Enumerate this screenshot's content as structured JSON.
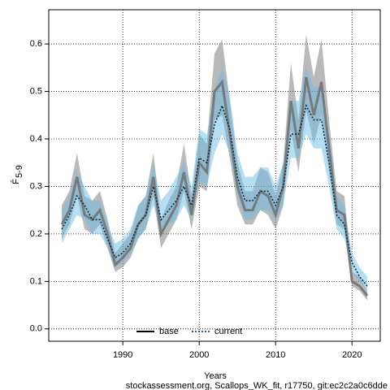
{
  "chart_data": {
    "type": "line",
    "x_label": "Years",
    "y_label": "F̄",
    "y_label_sub": "5-9",
    "footnote": "stockassessment.org, Scallops_WK_fit, r17750, git:ec2c2a0c6dde",
    "x": [
      1982,
      1983,
      1984,
      1985,
      1986,
      1987,
      1988,
      1989,
      1990,
      1991,
      1992,
      1993,
      1994,
      1995,
      1996,
      1997,
      1998,
      1999,
      2000,
      2001,
      2002,
      2003,
      2004,
      2005,
      2006,
      2007,
      2008,
      2009,
      2010,
      2011,
      2012,
      2013,
      2014,
      2015,
      2016,
      2017,
      2018,
      2019,
      2020,
      2021,
      2022
    ],
    "series": [
      {
        "name": "base",
        "color": "#000000",
        "line_color": "#6e6e6e",
        "band_color": "rgba(128,128,128,0.55)",
        "dash": false,
        "values": [
          0.22,
          0.25,
          0.32,
          0.24,
          0.23,
          0.25,
          0.2,
          0.135,
          0.15,
          0.17,
          0.22,
          0.24,
          0.32,
          0.2,
          0.23,
          0.26,
          0.33,
          0.24,
          0.35,
          0.33,
          0.5,
          0.52,
          0.41,
          0.3,
          0.25,
          0.25,
          0.29,
          0.28,
          0.24,
          0.3,
          0.48,
          0.38,
          0.53,
          0.45,
          0.52,
          0.38,
          0.25,
          0.24,
          0.1,
          0.09,
          0.07
        ],
        "lower": [
          0.19,
          0.22,
          0.28,
          0.21,
          0.2,
          0.22,
          0.17,
          0.12,
          0.13,
          0.15,
          0.19,
          0.21,
          0.28,
          0.17,
          0.2,
          0.23,
          0.29,
          0.21,
          0.3,
          0.29,
          0.44,
          0.45,
          0.36,
          0.26,
          0.22,
          0.22,
          0.25,
          0.24,
          0.21,
          0.26,
          0.42,
          0.33,
          0.46,
          0.39,
          0.45,
          0.33,
          0.22,
          0.21,
          0.09,
          0.08,
          0.06
        ],
        "upper": [
          0.26,
          0.29,
          0.37,
          0.28,
          0.27,
          0.29,
          0.23,
          0.16,
          0.18,
          0.2,
          0.26,
          0.28,
          0.37,
          0.23,
          0.27,
          0.3,
          0.39,
          0.28,
          0.41,
          0.39,
          0.58,
          0.61,
          0.48,
          0.35,
          0.29,
          0.29,
          0.34,
          0.33,
          0.28,
          0.35,
          0.56,
          0.44,
          0.62,
          0.53,
          0.61,
          0.44,
          0.29,
          0.28,
          0.12,
          0.11,
          0.08
        ]
      },
      {
        "name": "current",
        "color": "#1f5f8b",
        "line_color": "#0d2a40",
        "band_color": "rgba(110,190,230,0.5)",
        "dash": true,
        "values": [
          0.21,
          0.24,
          0.28,
          0.26,
          0.23,
          0.23,
          0.19,
          0.15,
          0.16,
          0.18,
          0.22,
          0.24,
          0.3,
          0.23,
          0.25,
          0.27,
          0.3,
          0.26,
          0.36,
          0.35,
          0.43,
          0.47,
          0.42,
          0.32,
          0.27,
          0.27,
          0.29,
          0.29,
          0.26,
          0.3,
          0.41,
          0.41,
          0.47,
          0.44,
          0.44,
          0.35,
          0.24,
          0.22,
          0.14,
          0.11,
          0.09
        ],
        "lower": [
          0.18,
          0.21,
          0.24,
          0.23,
          0.2,
          0.2,
          0.17,
          0.13,
          0.14,
          0.16,
          0.19,
          0.21,
          0.26,
          0.2,
          0.22,
          0.23,
          0.26,
          0.23,
          0.31,
          0.3,
          0.37,
          0.41,
          0.37,
          0.28,
          0.23,
          0.23,
          0.25,
          0.25,
          0.23,
          0.26,
          0.36,
          0.36,
          0.41,
          0.38,
          0.38,
          0.3,
          0.21,
          0.19,
          0.12,
          0.1,
          0.08
        ],
        "upper": [
          0.25,
          0.28,
          0.33,
          0.3,
          0.27,
          0.27,
          0.22,
          0.18,
          0.19,
          0.21,
          0.26,
          0.28,
          0.35,
          0.27,
          0.29,
          0.32,
          0.35,
          0.3,
          0.42,
          0.41,
          0.5,
          0.55,
          0.49,
          0.37,
          0.32,
          0.32,
          0.34,
          0.34,
          0.3,
          0.35,
          0.48,
          0.48,
          0.55,
          0.51,
          0.51,
          0.41,
          0.28,
          0.26,
          0.16,
          0.13,
          0.11
        ]
      }
    ],
    "xlim": [
      1980.3,
      2023.7
    ],
    "xticks": [
      1990,
      2000,
      2010,
      2020
    ],
    "ylim": [
      -0.026,
      0.672
    ],
    "yticks": [
      {
        "value": 0,
        "label": "0.0"
      },
      0.1,
      0.2,
      0.3,
      0.4,
      0.5,
      0.6
    ],
    "grid": true,
    "legend": "bottom"
  }
}
